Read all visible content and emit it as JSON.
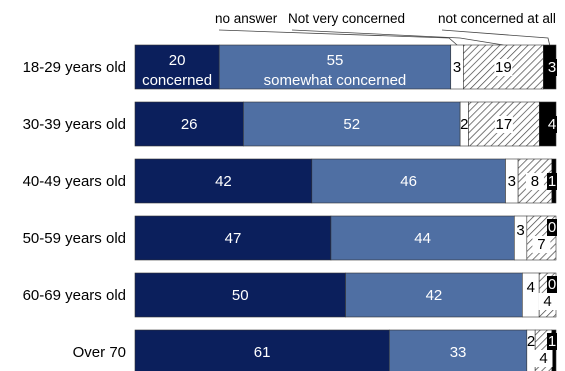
{
  "chart_data": {
    "type": "bar",
    "orientation": "horizontal",
    "stacked": true,
    "normalized": true,
    "categories": [
      "18-29 years old",
      "30-39 years old",
      "40-49 years old",
      "50-59 years old",
      "60-69 years old",
      "Over 70"
    ],
    "series": [
      {
        "name": "concerned",
        "color": "#0b1f5c",
        "pattern": "solid",
        "values": [
          20,
          26,
          42,
          47,
          50,
          61
        ]
      },
      {
        "name": "somewhat concerned",
        "color": "#4f6fa3",
        "pattern": "solid",
        "values": [
          55,
          52,
          46,
          44,
          42,
          33
        ]
      },
      {
        "name": "no answer",
        "color": "#ffffff",
        "pattern": "solid",
        "values": [
          3,
          2,
          3,
          3,
          4,
          2
        ]
      },
      {
        "name": "Not very concerned",
        "color": "#ffffff",
        "pattern": "hatch",
        "values": [
          19,
          17,
          8,
          7,
          4,
          4
        ]
      },
      {
        "name": "not concerned at all",
        "color": "#000000",
        "pattern": "solid",
        "values": [
          3,
          4,
          1,
          0,
          0,
          1
        ]
      }
    ],
    "inline_labels": [
      "concerned",
      "somewhat concerned"
    ],
    "legend": "top",
    "grid": false
  }
}
